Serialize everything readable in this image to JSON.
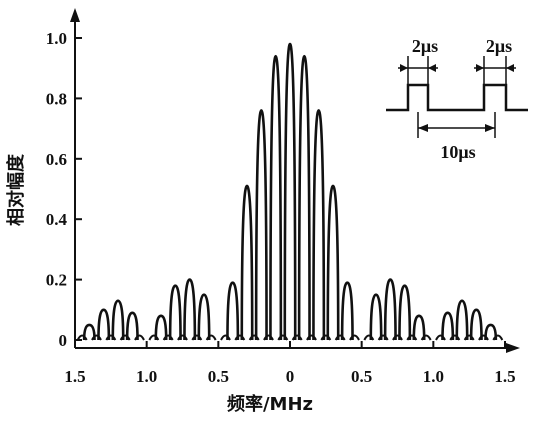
{
  "chart_data": {
    "type": "line",
    "title": "",
    "xlabel": "频率/MHz",
    "ylabel": "相对幅度",
    "x_tick_labels": [
      "1.5",
      "1.0",
      "0.5",
      "0",
      "0.5",
      "1.0",
      "1.5"
    ],
    "y_tick_labels": [
      "0",
      "0.2",
      "0.4",
      "0.6",
      "0.8",
      "1.0"
    ],
    "xlim": [
      -1.5,
      1.5
    ],
    "ylim": [
      0,
      1.0
    ],
    "grid": false,
    "spectral_line_spacing_mhz": 0.1,
    "envelope_first_null_mhz": 0.5,
    "series": [
      {
        "x": [
          -1.4,
          -1.3,
          -1.2,
          -1.1,
          -1.0,
          -0.9,
          -0.8,
          -0.7,
          -0.6,
          -0.5,
          -0.4,
          -0.3,
          -0.2,
          -0.1,
          0,
          0.1,
          0.2,
          0.3,
          0.4,
          0.5,
          0.6,
          0.7,
          0.8,
          0.9,
          1.0,
          1.1,
          1.2,
          1.3,
          1.4
        ],
        "values": [
          0.05,
          0.1,
          0.13,
          0.09,
          0,
          0.08,
          0.18,
          0.2,
          0.15,
          0,
          0.19,
          0.51,
          0.76,
          0.94,
          0.98,
          0.94,
          0.76,
          0.51,
          0.19,
          0,
          0.15,
          0.2,
          0.18,
          0.08,
          0,
          0.09,
          0.13,
          0.1,
          0.05
        ]
      }
    ],
    "inset": {
      "pulse_width_label_left": "2μs",
      "pulse_width_label_right": "2μs",
      "period_label": "10μs"
    }
  }
}
